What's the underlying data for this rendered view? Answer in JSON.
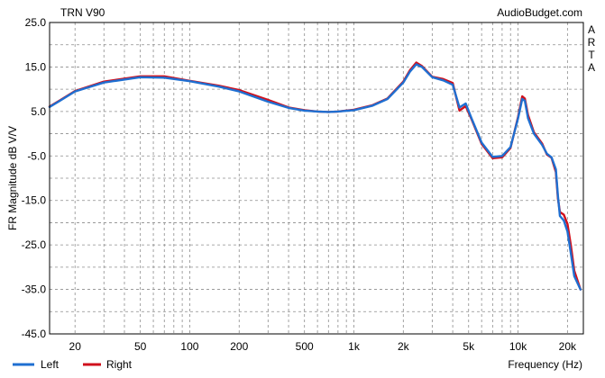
{
  "chart_data": {
    "type": "line",
    "title": "TRN V90",
    "watermark": "AudioBudget.com",
    "side_label": [
      "A",
      "R",
      "T",
      "A"
    ],
    "ylabel": "FR Magnitude dB V/V",
    "xlabel": "Frequency (Hz)",
    "x_scale": "log",
    "xlim": [
      14,
      25000
    ],
    "ylim": [
      -45,
      25
    ],
    "grid": true,
    "yticks": [
      25,
      15,
      5,
      -5,
      -15,
      -25,
      -35,
      -45
    ],
    "ytick_labels": [
      "25.0",
      "15.0",
      "5.0",
      "-5.0",
      "-15.0",
      "-25.0",
      "-35.0",
      "-45.0"
    ],
    "xticks": [
      20,
      50,
      100,
      200,
      500,
      1000,
      2000,
      5000,
      10000,
      20000
    ],
    "xtick_labels": [
      "20",
      "50",
      "100",
      "200",
      "500",
      "1k",
      "2k",
      "5k",
      "10k",
      "20k"
    ],
    "legend_position": "bottom-left",
    "series": [
      {
        "name": "Left",
        "color": "#1f6fd1",
        "x": [
          14,
          16,
          20,
          30,
          50,
          70,
          100,
          150,
          200,
          300,
          400,
          500,
          600,
          700,
          800,
          1000,
          1300,
          1600,
          2000,
          2200,
          2400,
          2600,
          3000,
          3500,
          4000,
          4400,
          4800,
          5200,
          6000,
          7000,
          8000,
          9000,
          10000,
          10600,
          11000,
          11500,
          12500,
          14000,
          15000,
          16000,
          17000,
          17500,
          18000,
          19000,
          20000,
          21000,
          22000,
          24000
        ],
        "y": [
          6.0,
          7.3,
          9.5,
          11.5,
          12.7,
          12.6,
          11.8,
          10.6,
          9.5,
          7.2,
          5.8,
          5.2,
          5.0,
          4.9,
          5.0,
          5.3,
          6.3,
          7.8,
          11.5,
          14.0,
          15.6,
          15.0,
          12.7,
          12.0,
          11.0,
          5.9,
          6.8,
          3.5,
          -2.0,
          -5.2,
          -5.0,
          -3.0,
          3.5,
          7.8,
          7.4,
          3.5,
          0.0,
          -2.5,
          -4.5,
          -5.3,
          -8.0,
          -14.0,
          -18.5,
          -19.5,
          -22.0,
          -27.0,
          -32.0,
          -35.0
        ]
      },
      {
        "name": "Right",
        "color": "#d0101c",
        "x": [
          14,
          16,
          20,
          30,
          50,
          70,
          100,
          150,
          200,
          300,
          400,
          500,
          600,
          700,
          800,
          1000,
          1300,
          1600,
          2000,
          2200,
          2400,
          2600,
          3000,
          3500,
          4000,
          4400,
          4800,
          5200,
          6000,
          7000,
          8000,
          9000,
          10000,
          10600,
          11000,
          11500,
          12500,
          14000,
          15000,
          16000,
          17000,
          17500,
          18000,
          19000,
          20000,
          21000,
          22000,
          24000
        ],
        "y": [
          6.1,
          7.4,
          9.6,
          11.7,
          12.9,
          12.9,
          11.9,
          10.8,
          9.8,
          7.6,
          5.9,
          5.3,
          5.0,
          4.9,
          5.0,
          5.4,
          6.4,
          7.9,
          11.7,
          14.3,
          16.0,
          15.2,
          12.8,
          12.3,
          11.4,
          5.2,
          6.2,
          3.3,
          -2.3,
          -5.5,
          -5.3,
          -3.2,
          3.8,
          8.4,
          7.9,
          4.2,
          0.3,
          -2.2,
          -4.7,
          -5.4,
          -8.6,
          -14.6,
          -17.6,
          -18.2,
          -20.3,
          -25.2,
          -30.8,
          -35.0
        ]
      }
    ]
  }
}
